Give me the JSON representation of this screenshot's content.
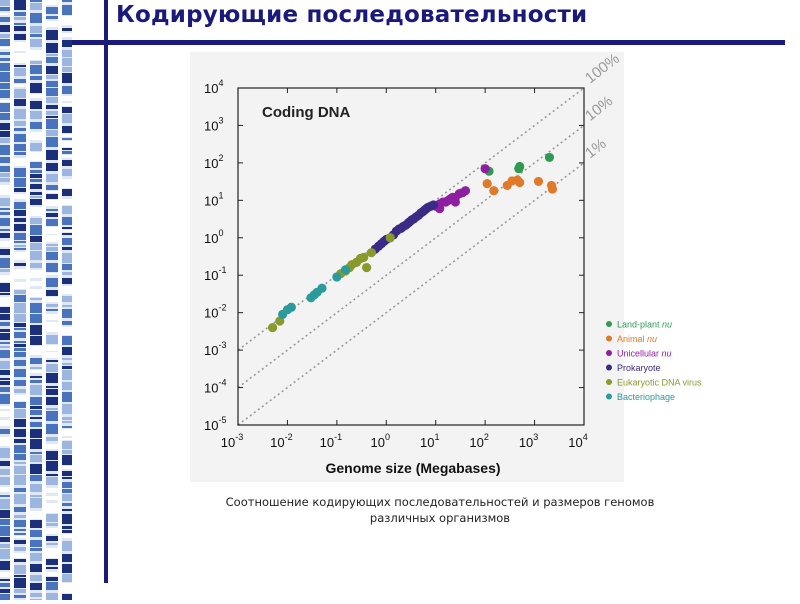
{
  "slide": {
    "title": "Кодирующие последовательности",
    "caption_line1": "Соотношение кодирующих последовательностей и размеров геномов",
    "caption_line2": "различных организмов"
  },
  "colors": {
    "accent": "#1a1a7a",
    "figure_bg": "#f3f3f3",
    "land_plant": "#2e9a52",
    "animal": "#e07a2a",
    "unicellular": "#8e1fa0",
    "prokaryote": "#3b2a86",
    "eukaryotic_virus": "#8a9a2a",
    "bacteriophage": "#2a9a9a",
    "reference_line": "#9a9a9a"
  },
  "chart_data": {
    "type": "scatter",
    "title": "Coding DNA",
    "xlabel": "Genome size (Megabases)",
    "ylabel": "",
    "x_scale": "log",
    "y_scale": "log",
    "xlim": [
      0.001,
      10000
    ],
    "ylim": [
      1e-05,
      10000
    ],
    "x_ticks": [
      {
        "base": "10",
        "exp": "-3"
      },
      {
        "base": "10",
        "exp": "-2"
      },
      {
        "base": "10",
        "exp": "-1"
      },
      {
        "base": "10",
        "exp": "0"
      },
      {
        "base": "10",
        "exp": "1"
      },
      {
        "base": "10",
        "exp": "2"
      },
      {
        "base": "10",
        "exp": "3"
      },
      {
        "base": "10",
        "exp": "4"
      }
    ],
    "y_ticks": [
      {
        "base": "10",
        "exp": "-5"
      },
      {
        "base": "10",
        "exp": "-4"
      },
      {
        "base": "10",
        "exp": "-3"
      },
      {
        "base": "10",
        "exp": "-2"
      },
      {
        "base": "10",
        "exp": "-1"
      },
      {
        "base": "10",
        "exp": "0"
      },
      {
        "base": "10",
        "exp": "1"
      },
      {
        "base": "10",
        "exp": "2"
      },
      {
        "base": "10",
        "exp": "3"
      },
      {
        "base": "10",
        "exp": "4"
      }
    ],
    "grid": false,
    "legend_position": "bottom-right",
    "reference_lines": [
      {
        "label": "100%",
        "fraction": 1
      },
      {
        "label": "10%",
        "fraction": 0.1
      },
      {
        "label": "1%",
        "fraction": 0.01
      }
    ],
    "series": [
      {
        "name": "Land-plant",
        "suffix": "nu",
        "color_key": "land_plant",
        "points": [
          [
            120,
            60
          ],
          [
            480,
            70
          ],
          [
            500,
            80
          ],
          [
            2000,
            140
          ]
        ]
      },
      {
        "name": "Animal",
        "suffix": "nu",
        "color_key": "animal",
        "points": [
          [
            110,
            28
          ],
          [
            150,
            18
          ],
          [
            280,
            25
          ],
          [
            350,
            33
          ],
          [
            450,
            35
          ],
          [
            500,
            30
          ],
          [
            1200,
            32
          ],
          [
            2200,
            25
          ],
          [
            2300,
            20
          ]
        ]
      },
      {
        "name": "Unicellular",
        "suffix": "nu",
        "color_key": "unicellular",
        "points": [
          [
            10,
            7
          ],
          [
            12,
            8
          ],
          [
            14,
            9
          ],
          [
            16,
            9
          ],
          [
            18,
            10
          ],
          [
            20,
            11
          ],
          [
            22,
            12
          ],
          [
            25,
            12
          ],
          [
            30,
            15
          ],
          [
            35,
            16
          ],
          [
            40,
            18
          ],
          [
            100,
            70
          ],
          [
            12,
            6
          ],
          [
            25,
            9
          ]
        ]
      },
      {
        "name": "Prokaryote",
        "suffix": "",
        "color_key": "prokaryote",
        "points": [
          [
            0.6,
            0.5
          ],
          [
            0.7,
            0.6
          ],
          [
            0.8,
            0.7
          ],
          [
            0.9,
            0.8
          ],
          [
            1.0,
            0.9
          ],
          [
            1.2,
            1.0
          ],
          [
            1.4,
            1.2
          ],
          [
            1.6,
            1.5
          ],
          [
            1.8,
            1.7
          ],
          [
            2.0,
            1.8
          ],
          [
            2.2,
            2.0
          ],
          [
            2.5,
            2.2
          ],
          [
            2.8,
            2.5
          ],
          [
            3.0,
            2.7
          ],
          [
            3.3,
            3.0
          ],
          [
            3.6,
            3.2
          ],
          [
            4.0,
            3.6
          ],
          [
            4.5,
            4.0
          ],
          [
            5.0,
            4.6
          ],
          [
            5.5,
            5.0
          ],
          [
            6.0,
            5.5
          ],
          [
            6.5,
            6.0
          ],
          [
            7.0,
            6.5
          ],
          [
            8.0,
            7.0
          ],
          [
            9.0,
            7.5
          ]
        ]
      },
      {
        "name": "Eukaryotic DNA virus",
        "suffix": "",
        "color_key": "eukaryotic_virus",
        "points": [
          [
            0.005,
            0.004
          ],
          [
            0.007,
            0.006
          ],
          [
            0.12,
            0.11
          ],
          [
            0.15,
            0.13
          ],
          [
            0.18,
            0.16
          ],
          [
            0.2,
            0.19
          ],
          [
            0.25,
            0.22
          ],
          [
            0.3,
            0.28
          ],
          [
            0.35,
            0.3
          ],
          [
            0.4,
            0.16
          ],
          [
            0.5,
            0.4
          ],
          [
            1.2,
            1.0
          ]
        ]
      },
      {
        "name": "Bacteriophage",
        "suffix": "",
        "color_key": "bacteriophage",
        "points": [
          [
            0.008,
            0.009
          ],
          [
            0.01,
            0.012
          ],
          [
            0.012,
            0.014
          ],
          [
            0.03,
            0.025
          ],
          [
            0.035,
            0.03
          ],
          [
            0.04,
            0.035
          ],
          [
            0.05,
            0.045
          ],
          [
            0.1,
            0.09
          ],
          [
            0.15,
            0.14
          ]
        ]
      }
    ]
  }
}
